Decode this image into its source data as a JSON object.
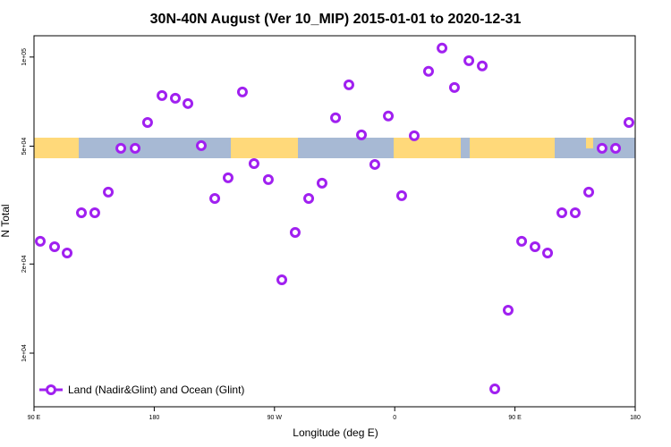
{
  "chart_data": {
    "type": "scatter",
    "title": "30N-40N August (Ver 10_MIP)   2015-01-01 to 2020-12-31",
    "x_label": "Longitude (deg E)",
    "y_label": "N Total",
    "xlim": [
      90,
      540
    ],
    "ylim": [
      6590,
      118000
    ],
    "log_y": true,
    "legend": "lower left",
    "xticks": [
      {
        "value": 90,
        "label": "90 E"
      },
      180,
      {
        "value": 270,
        "label": "90 W"
      },
      {
        "value": 360,
        "label": "0"
      },
      {
        "value": 450,
        "label": "90 E"
      },
      {
        "value": 540,
        "label": "180"
      }
    ],
    "yticks": [
      {
        "value": 10000,
        "label": "1e+04"
      },
      {
        "value": 20000,
        "label": "2e+04"
      },
      {
        "value": 50000,
        "label": "5e+04"
      },
      {
        "value": 100000,
        "label": "1e+05"
      }
    ],
    "series": [
      {
        "name": "Land (Nadir&Glint) and Ocean (Glint)",
        "color": "#a020f0",
        "x": [
          94.7,
          105.4,
          114.8,
          125.5,
          135.5,
          145.6,
          155,
          165.7,
          175,
          185.8,
          195.8,
          205.2,
          215.2,
          225.3,
          235.3,
          246,
          254.7,
          265.4,
          275.5,
          285.5,
          295.6,
          305.6,
          315.7,
          325.7,
          335.1,
          345.1,
          355.2,
          365.2,
          374.6,
          385.3,
          395.4,
          404.7,
          415.5,
          425.5,
          434.9,
          444.9,
          455,
          465,
          474.4,
          485.1,
          495.1,
          505.2,
          515.2,
          525.3,
          535.3
        ],
        "values": [
          23870,
          22880,
          21790,
          29800,
          29800,
          34990,
          49180,
          49180,
          60140,
          74130,
          72600,
          69660,
          50200,
          33300,
          39090,
          76200,
          43670,
          38550,
          17690,
          25570,
          33300,
          37500,
          62340,
          80560,
          54580,
          43380,
          63220,
          34030,
          54200,
          89510,
          107200,
          78890,
          97240,
          93290,
          7570,
          13960,
          23870,
          22880,
          21790,
          29800,
          29800,
          34990,
          49180,
          49180,
          60140
        ]
      }
    ]
  }
}
